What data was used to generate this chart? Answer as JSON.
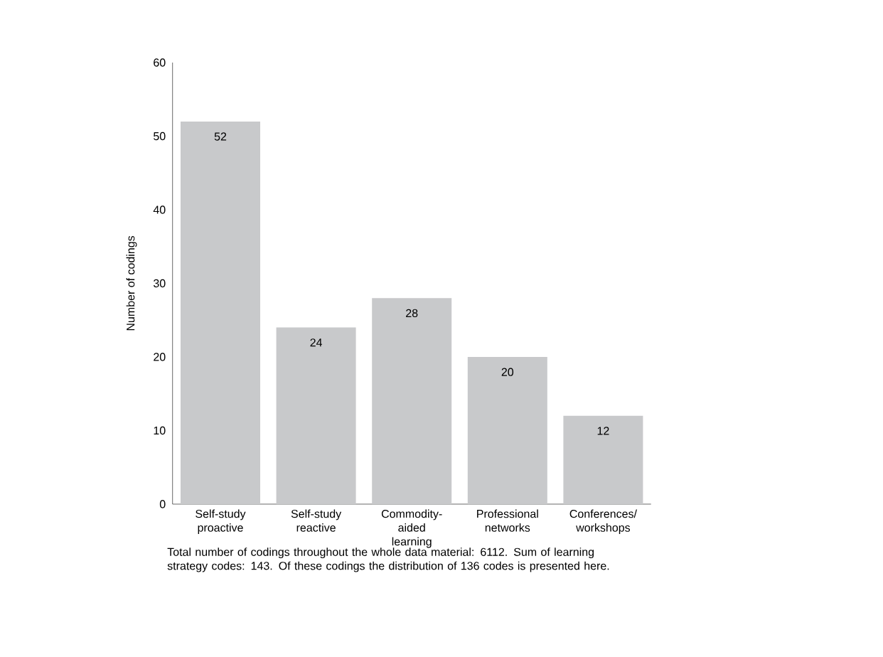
{
  "chart_data": {
    "type": "bar",
    "ylabel": "Number of codings",
    "categories": [
      "Self-study proactive",
      "Self-study reactive",
      "Commodity-aided learning",
      "Professional networks",
      "Conferences/ workshops"
    ],
    "values": [
      52,
      24,
      28,
      20,
      12
    ],
    "color": "#c8c9cb",
    "ylim": [
      0,
      60
    ],
    "yticks": [
      0,
      10,
      20,
      30,
      40,
      50,
      60
    ],
    "data_labels": true,
    "annotations": [
      "Total number of codings throughout the whole data material: 6112. Sum of learning strategy codes: 143. Of these codings the distribution of 136 codes is presented here."
    ]
  }
}
